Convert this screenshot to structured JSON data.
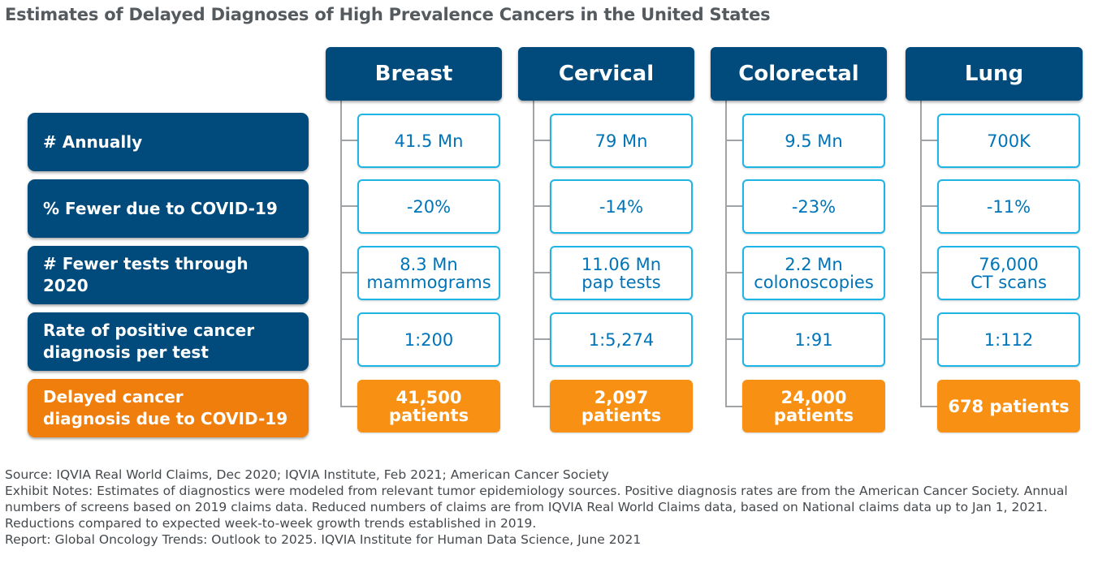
{
  "title": "Estimates of Delayed Diagnoses of High Prevalence Cancers in the United States",
  "columns": [
    "Breast",
    "Cervical",
    "Colorectal",
    "Lung"
  ],
  "rows": [
    {
      "label_lines": [
        "# Annually"
      ],
      "values": [
        [
          "41.5 Mn"
        ],
        [
          "79 Mn"
        ],
        [
          "9.5 Mn"
        ],
        [
          "700K"
        ]
      ],
      "highlight": false
    },
    {
      "label_lines": [
        "% Fewer due to COVID-19"
      ],
      "values": [
        [
          "-20%"
        ],
        [
          "-14%"
        ],
        [
          "-23%"
        ],
        [
          "-11%"
        ]
      ],
      "highlight": false
    },
    {
      "label_lines": [
        "# Fewer tests through",
        "2020"
      ],
      "values": [
        [
          "8.3 Mn",
          "mammograms"
        ],
        [
          "11.06 Mn",
          "pap tests"
        ],
        [
          "2.2 Mn",
          "colonoscopies"
        ],
        [
          "76,000",
          "CT scans"
        ]
      ],
      "highlight": false
    },
    {
      "label_lines": [
        "Rate of positive cancer",
        "diagnosis per test"
      ],
      "values": [
        [
          "1:200"
        ],
        [
          "1:5,274"
        ],
        [
          "1:91"
        ],
        [
          "1:112"
        ]
      ],
      "highlight": false
    },
    {
      "label_lines": [
        "Delayed cancer",
        "diagnosis due to COVID-19"
      ],
      "values": [
        [
          "41,500",
          "patients"
        ],
        [
          "2,097",
          "patients"
        ],
        [
          "24,000",
          "patients"
        ],
        [
          "678 patients"
        ]
      ],
      "highlight": true
    }
  ],
  "notes": {
    "source": "Source: IQVIA Real World Claims, Dec 2020; IQVIA Institute, Feb 2021; American Cancer Society",
    "exhibit": "Exhibit Notes: Estimates of diagnostics were modeled from relevant tumor epidemiology sources. Positive diagnosis rates are from the American Cancer Society. Annual numbers of screens based on 2019 claims data. Reduced numbers of claims are from IQVIA Real World Claims data, based on National claims data up to Jan 1, 2021. Reductions compared to expected week-to-week growth trends established in 2019.",
    "report": "Report: Global Oncology Trends: Outlook to 2025. IQVIA Institute for Human Data Science, June 2021"
  },
  "colors": {
    "header_blue": "#004a7c",
    "cell_border": "#1fb4e6",
    "cell_text": "#0074b8",
    "label_orange": "#f07e0d",
    "result_orange": "#f89113",
    "connector_gray": "#a0a4a7"
  }
}
